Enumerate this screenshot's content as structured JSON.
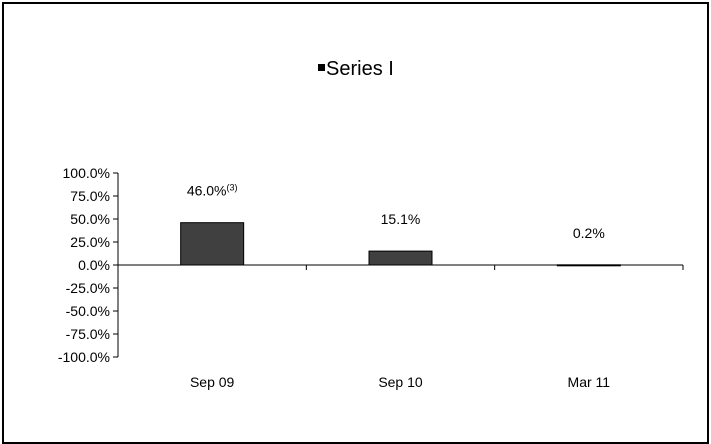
{
  "chart_data": {
    "type": "bar",
    "categories": [
      "Sep 09",
      "Sep 10",
      "Mar 11"
    ],
    "series": [
      {
        "name": "Series I",
        "values": [
          46.0,
          15.1,
          0.2
        ],
        "data_labels": [
          "46.0%",
          "15.1%",
          "0.2%"
        ],
        "footnote_marks": [
          "(3)",
          "",
          ""
        ]
      }
    ],
    "ylim": [
      -100,
      100
    ],
    "y_ticks": [
      "100.0%",
      "75.0%",
      "50.0%",
      "25.0%",
      "0.0%",
      "-25.0%",
      "-50.0%",
      "-75.0%",
      "-100.0%"
    ],
    "y_tick_values": [
      100,
      75,
      50,
      25,
      0,
      -25,
      -50,
      -75,
      -100
    ],
    "legend": {
      "position": "top",
      "entries": [
        "Series I"
      ]
    },
    "grid": false,
    "bar_color": "#404040",
    "title": "",
    "xlabel": "",
    "ylabel": ""
  }
}
